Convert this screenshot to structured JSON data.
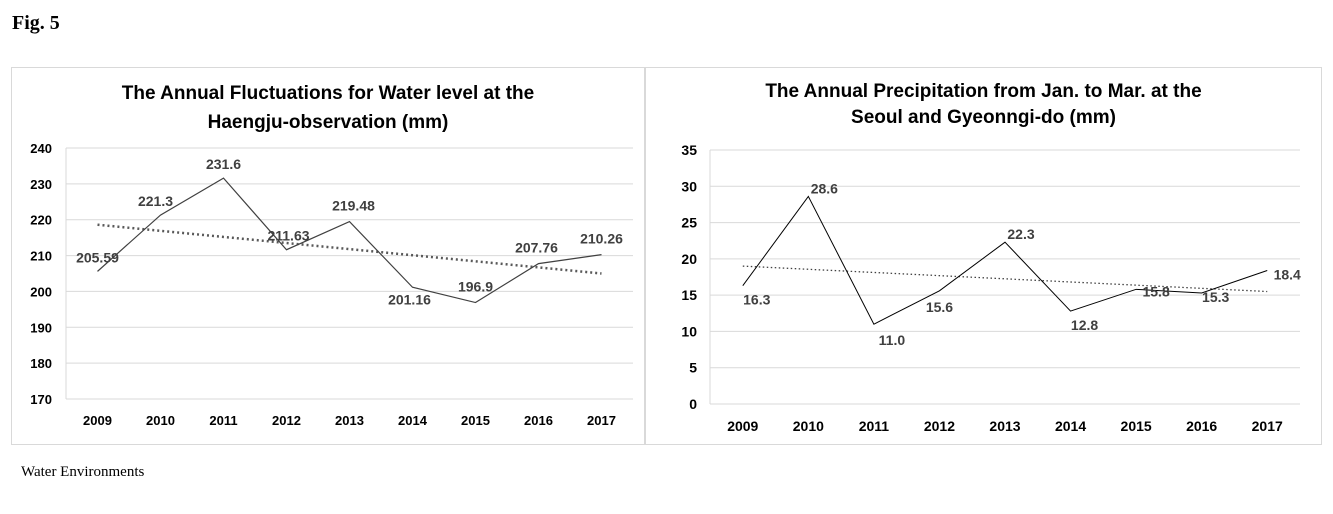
{
  "figure_label": "Fig. 5",
  "caption": "Water Environments",
  "chart_data": [
    {
      "type": "line",
      "title_lines": [
        "The Annual  Fluctuations for Water level at the",
        "Haengju-observation  (mm)"
      ],
      "title": "The Annual  Fluctuations for Water level at the Haengju-observation  (mm)",
      "categories": [
        "2009",
        "2010",
        "2011",
        "2012",
        "2013",
        "2014",
        "2015",
        "2016",
        "2017"
      ],
      "series": [
        {
          "values": [
            205.59,
            221.3,
            231.6,
            211.63,
            219.48,
            201.16,
            196.9,
            207.76,
            210.26
          ],
          "labels": [
            "205.59",
            "221.3",
            "231.6",
            "211.63",
            "219.48",
            "201.16",
            "196.9",
            "207.76",
            "210.26"
          ]
        }
      ],
      "trendline": {
        "style": "dotted",
        "start": 218.6,
        "end": 205.0
      },
      "ylim": [
        170,
        240
      ],
      "yticks": [
        "170",
        "180",
        "190",
        "200",
        "210",
        "220",
        "230",
        "240"
      ],
      "xlabel": "",
      "ylabel": "",
      "grid": true,
      "legend": "none",
      "colors": {
        "line": "#404040",
        "trend": "#595959",
        "grid": "#d9d9d9",
        "label": "#404040"
      }
    },
    {
      "type": "line",
      "title_lines": [
        "The Annual Precipitation  from Jan. to Mar. at the",
        "Seoul and Gyeonngi-do (mm)"
      ],
      "title": "The Annual Precipitation  from Jan. to Mar. at the Seoul and Gyeonngi-do (mm)",
      "categories": [
        "2009",
        "2010",
        "2011",
        "2012",
        "2013",
        "2014",
        "2015",
        "2016",
        "2017"
      ],
      "series": [
        {
          "values": [
            16.3,
            28.6,
            11.0,
            15.6,
            22.3,
            12.8,
            15.8,
            15.3,
            18.4
          ],
          "labels": [
            "16.3",
            "28.6",
            "11.0",
            "15.6",
            "22.3",
            "12.8",
            "15.8",
            "15.3",
            "18.4"
          ]
        }
      ],
      "trendline": {
        "style": "dotted",
        "start": 19.0,
        "end": 15.5
      },
      "ylim": [
        0,
        35
      ],
      "yticks": [
        "0",
        "5",
        "10",
        "15",
        "20",
        "25",
        "30",
        "35"
      ],
      "xlabel": "",
      "ylabel": "",
      "grid": true,
      "legend": "none",
      "colors": {
        "line": "#000000",
        "trend": "#404040",
        "grid": "#d9d9d9",
        "label": "#404040"
      }
    }
  ]
}
